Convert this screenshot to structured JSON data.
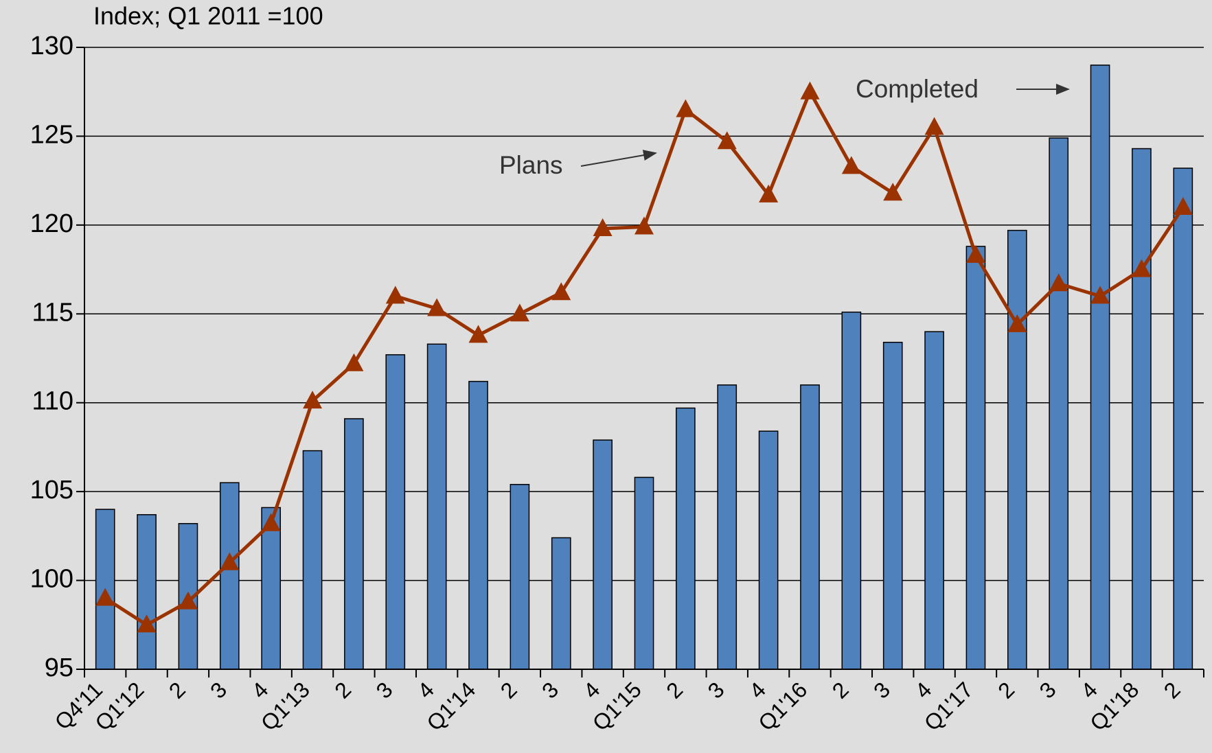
{
  "chart_data": {
    "type": "bar-line",
    "subtitle": "Index; Q1 2011 =100",
    "categories": [
      "Q4'11",
      "Q1'12",
      "2",
      "3",
      "4",
      "Q1'13",
      "2",
      "3",
      "4",
      "Q1'14",
      "2",
      "3",
      "4",
      "Q1'15",
      "2",
      "3",
      "4",
      "Q1'16",
      "2",
      "3",
      "4",
      "Q1'17",
      "2",
      "3",
      "4",
      "Q1'18",
      "2"
    ],
    "series": [
      {
        "name": "Completed",
        "type": "bar",
        "color": "#4f81bd",
        "values": [
          104,
          103.7,
          103.2,
          105.5,
          104.1,
          107.3,
          109.1,
          112.7,
          113.3,
          111.2,
          105.4,
          102.4,
          107.9,
          105.8,
          109.7,
          111,
          108.4,
          111,
          115.1,
          113.4,
          114,
          118.8,
          119.7,
          124.9,
          129,
          124.3,
          123.2
        ]
      },
      {
        "name": "Plans",
        "type": "line",
        "color": "#9b3300",
        "values": [
          99,
          97.5,
          98.8,
          101,
          103.2,
          110.1,
          112.2,
          116,
          115.3,
          113.8,
          115,
          116.2,
          119.8,
          119.9,
          126.5,
          124.7,
          121.7,
          127.5,
          123.3,
          121.8,
          125.5,
          118.3,
          114.4,
          116.7,
          116,
          117.5,
          121
        ]
      }
    ],
    "ylim": [
      95,
      130
    ],
    "yticks": [
      95,
      100,
      105,
      110,
      115,
      120,
      125,
      130
    ],
    "grid": true
  }
}
